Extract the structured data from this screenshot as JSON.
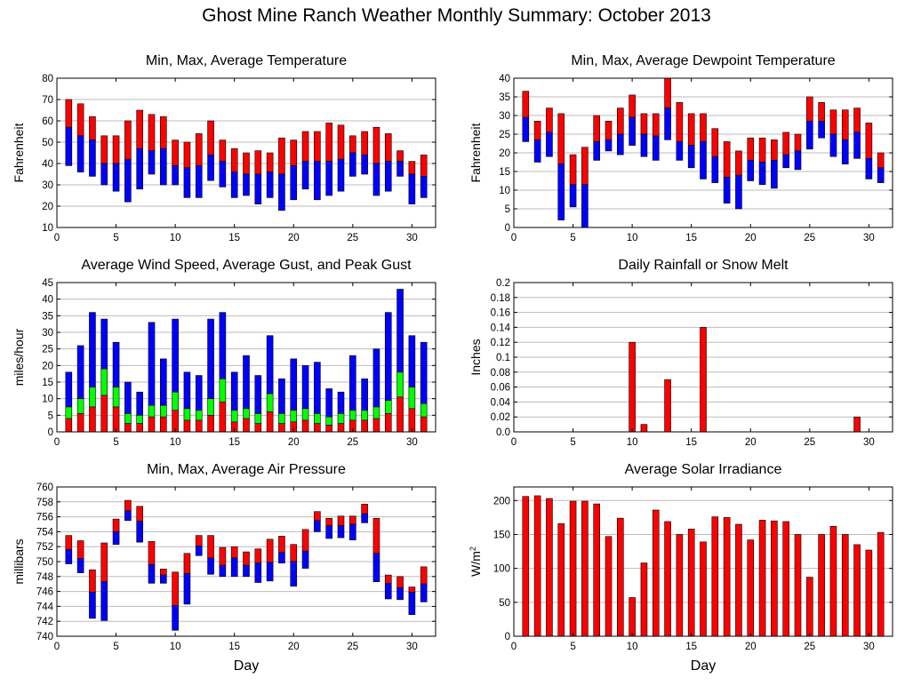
{
  "title": "Ghost Mine Ranch Weather Monthly Summary: October 2013",
  "colors": {
    "red": "#ff0000",
    "blue": "#0000ff",
    "green": "#00ff00",
    "grid": "#bbbbbb"
  },
  "chart_data": [
    {
      "id": "temp",
      "type": "bar",
      "title": "Min, Max, Average Temperature",
      "xlabel": "",
      "ylabel": "Fahrenheit",
      "xlim": [
        0,
        32
      ],
      "ylim": [
        10,
        80
      ],
      "xticks": [
        0,
        5,
        10,
        15,
        20,
        25,
        30
      ],
      "yticks": [
        10,
        20,
        30,
        40,
        50,
        60,
        70,
        80
      ],
      "x": [
        1,
        2,
        3,
        4,
        5,
        6,
        7,
        8,
        9,
        10,
        11,
        12,
        13,
        14,
        15,
        16,
        17,
        18,
        19,
        20,
        21,
        22,
        23,
        24,
        25,
        26,
        27,
        28,
        29,
        30,
        31
      ],
      "series": [
        {
          "name": "Max",
          "values": [
            70,
            68,
            62,
            53,
            53,
            60,
            65,
            63,
            62,
            51,
            50,
            54,
            60,
            51,
            47,
            45,
            46,
            45,
            52,
            51,
            55,
            55,
            59,
            58,
            53,
            55,
            57,
            54,
            46,
            41,
            44
          ]
        },
        {
          "name": "Average",
          "values": [
            57,
            53,
            51,
            40,
            40,
            42,
            47,
            46,
            47,
            39,
            38,
            39,
            44,
            41,
            36,
            35,
            35,
            36,
            35,
            39,
            41,
            41,
            41,
            42,
            45,
            44,
            40,
            41,
            41,
            35,
            34
          ]
        },
        {
          "name": "Min",
          "values": [
            39,
            36,
            34,
            30,
            27,
            22,
            28,
            35,
            30,
            30,
            24,
            24,
            32,
            29,
            24,
            25,
            21,
            24,
            18,
            23,
            28,
            23,
            25,
            27,
            34,
            35,
            25,
            27,
            34,
            21,
            24
          ]
        }
      ]
    },
    {
      "id": "dewpoint",
      "type": "bar",
      "title": "Min, Max, Average Dewpoint Temperature",
      "xlabel": "",
      "ylabel": "Fahrenheit",
      "xlim": [
        0,
        32
      ],
      "ylim": [
        0,
        40
      ],
      "xticks": [
        0,
        5,
        10,
        15,
        20,
        25,
        30
      ],
      "yticks": [
        0,
        5,
        10,
        15,
        20,
        25,
        30,
        35,
        40
      ],
      "x": [
        1,
        2,
        3,
        4,
        5,
        6,
        7,
        8,
        9,
        10,
        11,
        12,
        13,
        14,
        15,
        16,
        17,
        18,
        19,
        20,
        21,
        22,
        23,
        24,
        25,
        26,
        27,
        28,
        29,
        30,
        31
      ],
      "series": [
        {
          "name": "Max",
          "values": [
            36.5,
            28.5,
            32,
            30.5,
            19.5,
            21.5,
            30,
            28.5,
            32,
            35.5,
            30.5,
            30.5,
            40,
            33.5,
            30.5,
            30.5,
            26.5,
            23,
            20.5,
            24,
            24,
            23.5,
            25.5,
            25,
            35,
            33.5,
            31.5,
            31.5,
            32,
            28,
            20
          ]
        },
        {
          "name": "Average",
          "values": [
            29.5,
            23.5,
            25.5,
            17,
            11.5,
            11.5,
            23,
            23.5,
            25,
            29.5,
            25,
            24.5,
            32,
            23,
            22,
            23,
            19,
            13.5,
            14,
            18,
            17.5,
            18,
            19.5,
            20.5,
            28.5,
            28.5,
            25,
            23.5,
            25.5,
            18.5,
            16
          ]
        },
        {
          "name": "Min",
          "values": [
            23,
            17.5,
            19,
            2,
            5.5,
            -0.5,
            18,
            20.5,
            19.5,
            22,
            19,
            18,
            23.5,
            18,
            16,
            13,
            12,
            6.5,
            5,
            12.5,
            11.5,
            10.5,
            16,
            15.5,
            21,
            24,
            19,
            17,
            18.5,
            13,
            12
          ]
        }
      ]
    },
    {
      "id": "wind",
      "type": "bar",
      "title": "Average Wind Speed, Average Gust, and Peak Gust",
      "xlabel": "",
      "ylabel": "miles/hour",
      "xlim": [
        0,
        32
      ],
      "ylim": [
        0,
        45
      ],
      "xticks": [
        0,
        5,
        10,
        15,
        20,
        25,
        30
      ],
      "yticks": [
        0,
        5,
        10,
        15,
        20,
        25,
        30,
        35,
        40,
        45
      ],
      "x": [
        1,
        2,
        3,
        4,
        5,
        6,
        7,
        8,
        9,
        10,
        11,
        12,
        13,
        14,
        15,
        16,
        17,
        18,
        19,
        20,
        21,
        22,
        23,
        24,
        25,
        26,
        27,
        28,
        29,
        30,
        31
      ],
      "series": [
        {
          "name": "Peak Gust",
          "values": [
            18,
            26,
            36,
            34,
            27,
            15,
            12,
            33,
            22,
            34,
            18,
            17,
            34,
            36,
            18,
            23,
            17,
            29,
            16,
            22,
            20,
            21,
            13,
            12,
            23,
            16,
            25,
            36,
            43,
            29,
            27
          ]
        },
        {
          "name": "Average Gust",
          "values": [
            7.5,
            10,
            13.5,
            19,
            13.5,
            5.5,
            5,
            8,
            8,
            12,
            7,
            6.5,
            10,
            16,
            6.5,
            7,
            5.5,
            11.5,
            5.5,
            6.5,
            7,
            5.5,
            4.5,
            5.5,
            6.5,
            6.5,
            7.5,
            9.5,
            18,
            13.5,
            8.5
          ]
        },
        {
          "name": "Average Wind Speed",
          "values": [
            4,
            5.5,
            7.5,
            11,
            7.5,
            2.5,
            2.5,
            4.5,
            4.5,
            6.5,
            3.5,
            3.5,
            5,
            9,
            3,
            4,
            2.5,
            6,
            2.5,
            3,
            3.5,
            2.5,
            2,
            2.5,
            3.5,
            3.5,
            4,
            5.5,
            10.5,
            7,
            4.5
          ]
        }
      ]
    },
    {
      "id": "rain",
      "type": "bar",
      "title": "Daily Rainfall or Snow Melt",
      "xlabel": "",
      "ylabel": "Inches",
      "xlim": [
        0,
        32
      ],
      "ylim": [
        0,
        0.2
      ],
      "xticks": [
        0,
        5,
        10,
        15,
        20,
        25,
        30
      ],
      "yticks": [
        "0.0",
        "0.02",
        "0.04",
        "0.06",
        "0.08",
        "0.1",
        "0.12",
        "0.14",
        "0.16",
        "0.18",
        "0.2"
      ],
      "x": [
        10,
        11,
        13,
        16,
        29
      ],
      "values": [
        0.12,
        0.01,
        0.07,
        0.14,
        0.02
      ]
    },
    {
      "id": "pressure",
      "type": "bar",
      "title": "Min, Max, Average Air Pressure",
      "xlabel": "Day",
      "ylabel": "millibars",
      "xlim": [
        0,
        32
      ],
      "ylim": [
        740,
        760
      ],
      "xticks": [
        0,
        5,
        10,
        15,
        20,
        25,
        30
      ],
      "yticks": [
        740,
        742,
        744,
        746,
        748,
        750,
        752,
        754,
        756,
        758,
        760
      ],
      "x": [
        1,
        2,
        3,
        4,
        5,
        6,
        7,
        8,
        9,
        10,
        11,
        12,
        13,
        14,
        15,
        16,
        17,
        18,
        19,
        20,
        21,
        22,
        23,
        24,
        25,
        26,
        27,
        28,
        29,
        30,
        31
      ],
      "series": [
        {
          "name": "Max",
          "values": [
            753.5,
            752.8,
            748.9,
            752.5,
            755.7,
            758.2,
            757.4,
            752.7,
            749.0,
            748.6,
            751.1,
            753.5,
            753.5,
            751.9,
            752.0,
            751.3,
            751.7,
            753.0,
            753.4,
            752.3,
            754.3,
            756.7,
            755.8,
            756.1,
            756.1,
            757.7,
            755.8,
            748.2,
            748.0,
            746.6,
            749.3
          ]
        },
        {
          "name": "Average",
          "values": [
            751.6,
            750.4,
            745.9,
            747.3,
            754.0,
            756.8,
            755.4,
            749.6,
            748.2,
            744.1,
            748.4,
            752.1,
            750.5,
            749.5,
            750.5,
            749.5,
            749.8,
            749.9,
            751.2,
            750.0,
            751.4,
            755.5,
            754.8,
            754.8,
            755.0,
            756.4,
            751.1,
            747.1,
            746.5,
            745.9,
            747.0
          ]
        },
        {
          "name": "Min",
          "values": [
            749.7,
            748.5,
            742.4,
            742.1,
            752.3,
            755.5,
            752.6,
            747.1,
            747.1,
            740.8,
            744.3,
            750.8,
            748.3,
            748.0,
            748.0,
            748.0,
            747.2,
            747.4,
            749.8,
            746.7,
            749.1,
            754.0,
            753.1,
            753.2,
            752.9,
            755.2,
            747.3,
            745.0,
            744.9,
            742.9,
            744.6
          ]
        }
      ]
    },
    {
      "id": "solar",
      "type": "bar",
      "title": "Average Solar Irradiance",
      "xlabel": "Day",
      "ylabel": "W/m",
      "ylabel_sup": "2",
      "xlim": [
        0,
        32
      ],
      "ylim": [
        0,
        220
      ],
      "xticks": [
        0,
        5,
        10,
        15,
        20,
        25,
        30
      ],
      "yticks": [
        0,
        50,
        100,
        150,
        200
      ],
      "x": [
        1,
        2,
        3,
        4,
        5,
        6,
        7,
        8,
        9,
        10,
        11,
        12,
        13,
        14,
        15,
        16,
        17,
        18,
        19,
        20,
        21,
        22,
        23,
        24,
        25,
        26,
        27,
        28,
        29,
        30,
        31
      ],
      "values": [
        206,
        207,
        203,
        166,
        199,
        199,
        195,
        147,
        174,
        57,
        108,
        186,
        169,
        150,
        158,
        139,
        176,
        175,
        165,
        142,
        171,
        170,
        169,
        150,
        87,
        150,
        162,
        150,
        135,
        127,
        153
      ]
    }
  ]
}
